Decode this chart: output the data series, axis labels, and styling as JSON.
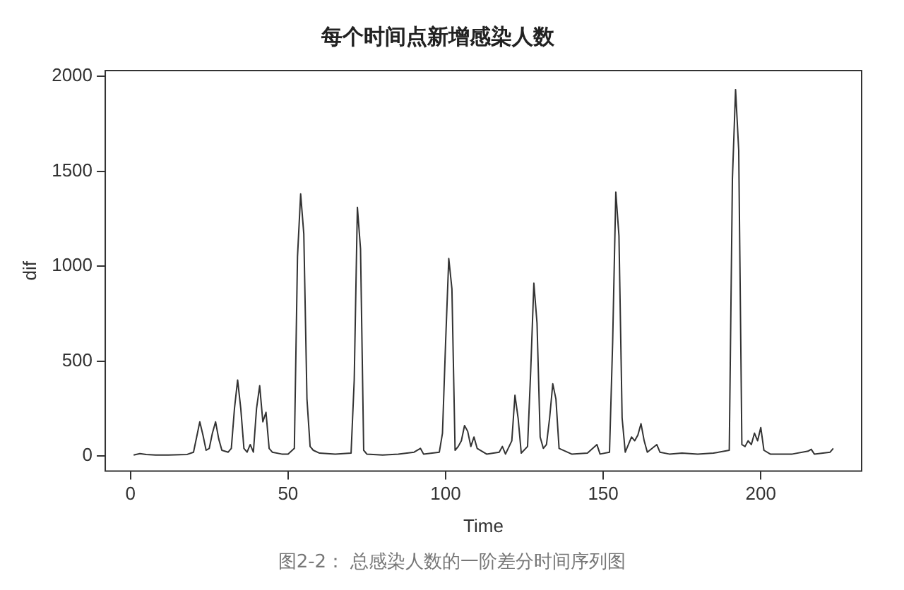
{
  "chart_data": {
    "type": "line",
    "title": "每个时间点新增感染人数",
    "xlabel": "Time",
    "ylabel": "dif",
    "xlim": [
      -8,
      232
    ],
    "xticks": [
      0,
      50,
      100,
      150,
      200
    ],
    "ylim": [
      -80,
      2030
    ],
    "yticks": [
      0,
      500,
      1000,
      1500,
      2000
    ],
    "grid": false,
    "legend": false,
    "marker": "none",
    "line_style": "solid",
    "annotations": [
      "图2-2： 总感染人数的一阶差分时间序列图"
    ],
    "series": [
      {
        "color": "#333333",
        "x": [
          1,
          3,
          5,
          8,
          12,
          18,
          20,
          21,
          22,
          23,
          24,
          25,
          26,
          27,
          28,
          29,
          31,
          32,
          33,
          34,
          35,
          36,
          37,
          38,
          39,
          40,
          41,
          42,
          43,
          44,
          45,
          48,
          50,
          52,
          53,
          54,
          55,
          56,
          57,
          58,
          60,
          65,
          70,
          71,
          72,
          73,
          74,
          75,
          80,
          85,
          90,
          92,
          93,
          98,
          99,
          100,
          101,
          102,
          103,
          104,
          105,
          106,
          107,
          108,
          109,
          110,
          113,
          117,
          118,
          119,
          121,
          122,
          123,
          124,
          126,
          127,
          128,
          129,
          130,
          131,
          132,
          133,
          134,
          135,
          136,
          140,
          145,
          148,
          149,
          152,
          153,
          154,
          155,
          156,
          157,
          158,
          159,
          160,
          161,
          162,
          163,
          164,
          167,
          168,
          171,
          175,
          180,
          185,
          190,
          191,
          192,
          193,
          194,
          195,
          196,
          197,
          198,
          199,
          200,
          201,
          203,
          210,
          215,
          216,
          217,
          222,
          223
        ],
        "values": [
          5,
          12,
          8,
          5,
          5,
          8,
          20,
          100,
          180,
          110,
          30,
          40,
          120,
          180,
          90,
          30,
          20,
          40,
          250,
          400,
          250,
          40,
          20,
          60,
          20,
          250,
          370,
          180,
          230,
          40,
          20,
          10,
          10,
          40,
          1050,
          1380,
          1170,
          300,
          50,
          30,
          15,
          10,
          15,
          400,
          1310,
          1090,
          30,
          10,
          5,
          10,
          20,
          40,
          10,
          20,
          120,
          600,
          1040,
          880,
          30,
          50,
          80,
          160,
          130,
          50,
          100,
          40,
          10,
          20,
          50,
          10,
          80,
          320,
          200,
          15,
          50,
          450,
          910,
          700,
          100,
          40,
          60,
          200,
          380,
          300,
          40,
          10,
          15,
          60,
          10,
          20,
          600,
          1390,
          1160,
          200,
          20,
          60,
          100,
          80,
          110,
          170,
          80,
          20,
          60,
          20,
          10,
          15,
          10,
          15,
          30,
          1460,
          1930,
          1610,
          60,
          50,
          80,
          60,
          120,
          80,
          150,
          30,
          10,
          10,
          25,
          35,
          10,
          20,
          40
        ]
      }
    ]
  }
}
